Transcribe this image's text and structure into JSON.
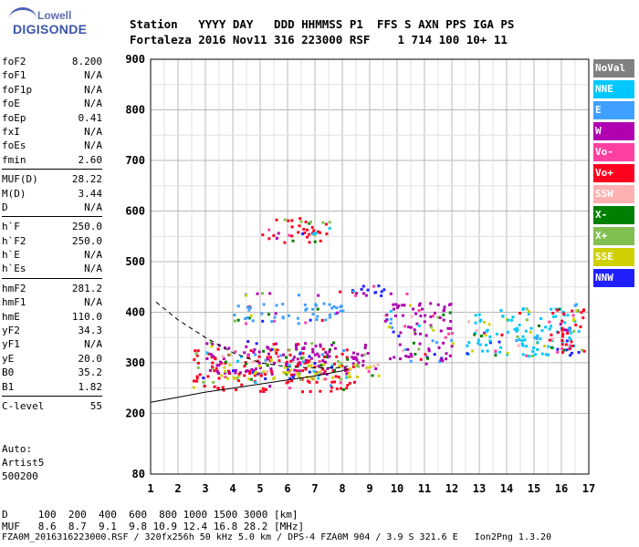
{
  "logo": {
    "top": "Lowell",
    "bottom": "DIGISONDE"
  },
  "header": {
    "labels": "Station   YYYY DAY   DDD HHMMSS P1  FFS S AXN PPS IGA PS",
    "values": "Fortaleza 2016 Nov11 316 223000 RSF    1 714 100 10+ 11"
  },
  "params": [
    {
      "label": "foF2",
      "value": "8.200"
    },
    {
      "label": "foF1",
      "value": "N/A"
    },
    {
      "label": "foF1p",
      "value": "N/A"
    },
    {
      "label": "foE",
      "value": "N/A"
    },
    {
      "label": "foEp",
      "value": "0.41"
    },
    {
      "label": "fxI",
      "value": "N/A"
    },
    {
      "label": "foEs",
      "value": "N/A"
    },
    {
      "label": "fmin",
      "value": "2.60"
    },
    {
      "sep": true
    },
    {
      "label": "MUF(D)",
      "value": "28.22"
    },
    {
      "label": "M(D)",
      "value": "3.44"
    },
    {
      "label": "D",
      "value": "N/A"
    },
    {
      "sep": true
    },
    {
      "label": "h`F",
      "value": "250.0"
    },
    {
      "label": "h`F2",
      "value": "250.0"
    },
    {
      "label": "h`E",
      "value": "N/A"
    },
    {
      "label": "h`Es",
      "value": "N/A"
    },
    {
      "sep": true
    },
    {
      "label": "hmF2",
      "value": "281.2"
    },
    {
      "label": "hmF1",
      "value": "N/A"
    },
    {
      "label": "hmE",
      "value": "110.0"
    },
    {
      "label": "yF2",
      "value": "34.3"
    },
    {
      "label": "yF1",
      "value": "N/A"
    },
    {
      "label": "yE",
      "value": "20.0"
    },
    {
      "label": "B0",
      "value": "35.2"
    },
    {
      "label": "B1",
      "value": "1.82"
    },
    {
      "sep": true
    },
    {
      "label": "C-level",
      "value": "55"
    }
  ],
  "auto": {
    "line1": "Auto:",
    "line2": "Artist5",
    "line3": "500200"
  },
  "legend": [
    {
      "label": "NoVal",
      "color": "#808080"
    },
    {
      "label": "NNE",
      "color": "#00c8ff"
    },
    {
      "label": "E",
      "color": "#40a0ff"
    },
    {
      "label": "W",
      "color": "#b000b0"
    },
    {
      "label": "Vo-",
      "color": "#ff40a0"
    },
    {
      "label": "Vo+",
      "color": "#ff0020"
    },
    {
      "label": "SSW",
      "color": "#ffb0b0"
    },
    {
      "label": "X-",
      "color": "#008000"
    },
    {
      "label": "X+",
      "color": "#80c050"
    },
    {
      "label": "SSE",
      "color": "#d0d000"
    },
    {
      "label": "NNW",
      "color": "#2020ff"
    }
  ],
  "footer": {
    "line1": "D     100  200  400  600  800 1000 1500 3000 [km]",
    "line2": "MUF   8.6  8.7  9.1  9.8 10.9 12.4 16.8 28.2 [MHz]",
    "line3": "FZA0M_2016316223000.RSF / 320fx256h 50 kHz 5.0 km / DPS-4 FZA0M 904 / 3.9 S 321.6 E   Ion2Png 1.3.20"
  },
  "chart_data": {
    "type": "scatter",
    "xlim": [
      1,
      17
    ],
    "ylim": [
      80,
      900
    ],
    "x_ticks": [
      1,
      2,
      3,
      4,
      5,
      6,
      7,
      8,
      9,
      10,
      11,
      12,
      13,
      14,
      15,
      16,
      17
    ],
    "y_ticks": [
      80,
      200,
      300,
      400,
      500,
      600,
      700,
      800,
      900
    ],
    "grid": true,
    "curves": [
      {
        "name": "",
        "style": "dashed",
        "x": [
          1.2,
          2,
          3,
          4,
          5,
          6,
          7,
          7.8,
          8.2
        ],
        "y": [
          420,
          385,
          350,
          320,
          300,
          292,
          290,
          290,
          293
        ]
      },
      {
        "name": "",
        "style": "solid",
        "x": [
          1.0,
          2,
          3,
          4,
          5,
          6,
          7,
          8,
          8.2
        ],
        "y": [
          222,
          232,
          242,
          250,
          258,
          266,
          274,
          284,
          288
        ]
      }
    ],
    "echo_bands": [
      {
        "mode": "Vo+",
        "x": [
          2.5,
          8.5
        ],
        "y": [
          245,
          330
        ]
      },
      {
        "mode": "W",
        "x": [
          3.0,
          9.0
        ],
        "y": [
          280,
          345
        ]
      },
      {
        "mode": "SSE",
        "x": [
          3.5,
          9.5
        ],
        "y": [
          270,
          300
        ]
      },
      {
        "mode": "W",
        "x": [
          3.0,
          10.5
        ],
        "y": [
          435,
          440
        ]
      },
      {
        "mode": "NNW",
        "x": [
          7.5,
          9.5
        ],
        "y": [
          440,
          460
        ]
      },
      {
        "mode": "Vo+",
        "x": [
          5.0,
          7.5
        ],
        "y": [
          540,
          590
        ]
      },
      {
        "mode": "E",
        "x": [
          4.0,
          8.0
        ],
        "y": [
          380,
          420
        ]
      },
      {
        "mode": "NNE",
        "x": [
          12.5,
          16.5
        ],
        "y": [
          315,
          410
        ]
      },
      {
        "mode": "W",
        "x": [
          9.5,
          12.0
        ],
        "y": [
          300,
          420
        ]
      },
      {
        "mode": "Vo+",
        "x": [
          15.5,
          16.8
        ],
        "y": [
          320,
          420
        ]
      }
    ]
  }
}
